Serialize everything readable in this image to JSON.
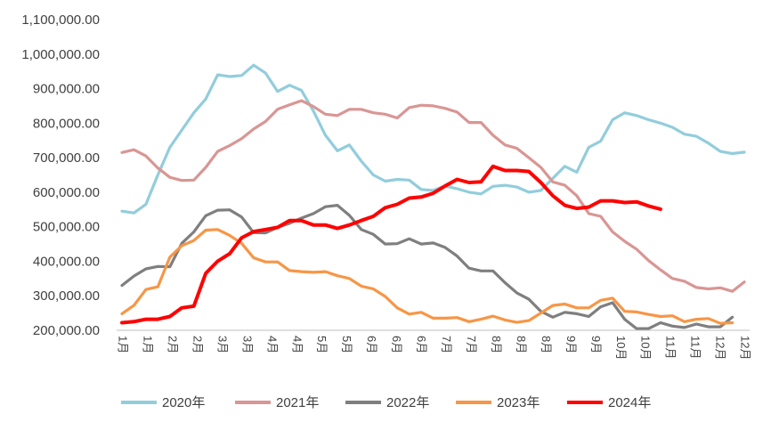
{
  "chart_data": {
    "type": "line",
    "title": "",
    "xlabel": "",
    "ylabel": "",
    "ylim": [
      200000,
      1100000
    ],
    "yticks": [
      "200,000.00",
      "300,000.00",
      "400,000.00",
      "500,000.00",
      "600,000.00",
      "700,000.00",
      "800,000.00",
      "900,000.00",
      "1,000,000.00",
      "1,100,000.00"
    ],
    "xticks": [
      "1月",
      "1月",
      "2月",
      "2月",
      "3月",
      "3月",
      "4月",
      "4月",
      "5月",
      "5月",
      "6月",
      "6月",
      "6月",
      "7月",
      "7月",
      "8月",
      "8月",
      "8月",
      "9月",
      "9月",
      "10月",
      "10月",
      "11月",
      "11月",
      "12月",
      "12月"
    ],
    "grid": false,
    "legend_position": "bottom",
    "series": [
      {
        "name": "2020年",
        "color": "#92CDDC",
        "values": [
          545000,
          540000,
          565000,
          650000,
          730000,
          780000,
          830000,
          870000,
          940000,
          935000,
          938000,
          968000,
          945000,
          892000,
          910000,
          895000,
          835000,
          765000,
          720000,
          737000,
          690000,
          650000,
          632000,
          637000,
          635000,
          608000,
          605000,
          618000,
          610000,
          600000,
          595000,
          617000,
          620000,
          615000,
          600000,
          605000,
          640000,
          675000,
          658000,
          730000,
          748000,
          810000,
          830000,
          822000,
          810000,
          800000,
          788000,
          768000,
          762000,
          742000,
          718000,
          712000,
          716000
        ]
      },
      {
        "name": "2021年",
        "color": "#D99694",
        "values": [
          715000,
          723000,
          705000,
          670000,
          643000,
          634000,
          635000,
          672000,
          718000,
          735000,
          755000,
          783000,
          805000,
          840000,
          853000,
          865000,
          848000,
          826000,
          822000,
          840000,
          840000,
          830000,
          826000,
          815000,
          845000,
          852000,
          850000,
          843000,
          832000,
          802000,
          802000,
          765000,
          737000,
          727000,
          700000,
          672000,
          630000,
          620000,
          590000,
          538000,
          530000,
          485000,
          458000,
          435000,
          402000,
          375000,
          350000,
          342000,
          324000,
          320000,
          323000,
          313000,
          340000
        ]
      },
      {
        "name": "2022年",
        "color": "#7F7F7F",
        "values": [
          330000,
          357000,
          378000,
          385000,
          384000,
          452000,
          485000,
          532000,
          548000,
          549000,
          528000,
          483000,
          482000,
          498000,
          510000,
          525000,
          538000,
          558000,
          562000,
          533000,
          492000,
          478000,
          450000,
          451000,
          465000,
          450000,
          453000,
          440000,
          415000,
          380000,
          372000,
          372000,
          338000,
          308000,
          290000,
          255000,
          238000,
          252000,
          248000,
          240000,
          268000,
          280000,
          232000,
          205000,
          205000,
          222000,
          212000,
          208000,
          218000,
          210000,
          210000,
          238000
        ]
      },
      {
        "name": "2023年",
        "color": "#F79646",
        "values": [
          248000,
          272000,
          318000,
          326000,
          412000,
          445000,
          460000,
          490000,
          492000,
          475000,
          452000,
          410000,
          398000,
          398000,
          373000,
          370000,
          368000,
          370000,
          358000,
          350000,
          328000,
          320000,
          298000,
          265000,
          247000,
          252000,
          235000,
          235000,
          237000,
          225000,
          232000,
          241000,
          230000,
          223000,
          228000,
          250000,
          272000,
          276000,
          265000,
          265000,
          287000,
          293000,
          255000,
          253000,
          246000,
          240000,
          242000,
          225000,
          232000,
          234000,
          220000,
          222000
        ]
      },
      {
        "name": "2024年",
        "color": "#FF0000",
        "values": [
          222000,
          225000,
          232000,
          232000,
          240000,
          265000,
          270000,
          365000,
          400000,
          422000,
          468000,
          486000,
          492000,
          498000,
          518000,
          518000,
          505000,
          505000,
          495000,
          505000,
          518000,
          530000,
          555000,
          565000,
          583000,
          586000,
          597000,
          618000,
          637000,
          628000,
          630000,
          675000,
          663000,
          663000,
          660000,
          628000,
          590000,
          562000,
          553000,
          557000,
          575000,
          575000,
          570000,
          572000,
          560000,
          551000
        ]
      }
    ]
  }
}
